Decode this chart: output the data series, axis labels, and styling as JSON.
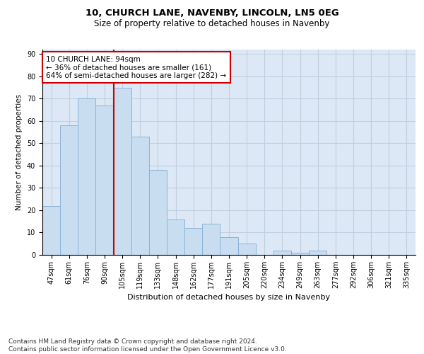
{
  "title1": "10, CHURCH LANE, NAVENBY, LINCOLN, LN5 0EG",
  "title2": "Size of property relative to detached houses in Navenby",
  "xlabel": "Distribution of detached houses by size in Navenby",
  "ylabel": "Number of detached properties",
  "categories": [
    "47sqm",
    "61sqm",
    "76sqm",
    "90sqm",
    "105sqm",
    "119sqm",
    "133sqm",
    "148sqm",
    "162sqm",
    "177sqm",
    "191sqm",
    "205sqm",
    "220sqm",
    "234sqm",
    "249sqm",
    "263sqm",
    "277sqm",
    "292sqm",
    "306sqm",
    "321sqm",
    "335sqm"
  ],
  "values": [
    22,
    58,
    70,
    67,
    75,
    53,
    38,
    16,
    12,
    14,
    8,
    5,
    0,
    2,
    1,
    2,
    0,
    0,
    0,
    0,
    0
  ],
  "bar_color": "#c9ddf0",
  "bar_edge_color": "#8ab4d8",
  "vline_x": 3.5,
  "vline_color": "#cc0000",
  "annotation_text": "10 CHURCH LANE: 94sqm\n← 36% of detached houses are smaller (161)\n64% of semi-detached houses are larger (282) →",
  "annotation_box_color": "#ffffff",
  "annotation_box_edge": "#cc0000",
  "ylim": [
    0,
    92
  ],
  "yticks": [
    0,
    10,
    20,
    30,
    40,
    50,
    60,
    70,
    80,
    90
  ],
  "grid_color": "#c0cfe0",
  "bg_color": "#dce8f5",
  "footer": "Contains HM Land Registry data © Crown copyright and database right 2024.\nContains public sector information licensed under the Open Government Licence v3.0.",
  "title1_fontsize": 9.5,
  "title2_fontsize": 8.5,
  "xlabel_fontsize": 8,
  "ylabel_fontsize": 7.5,
  "tick_fontsize": 7,
  "annotation_fontsize": 7.5,
  "footer_fontsize": 6.5
}
